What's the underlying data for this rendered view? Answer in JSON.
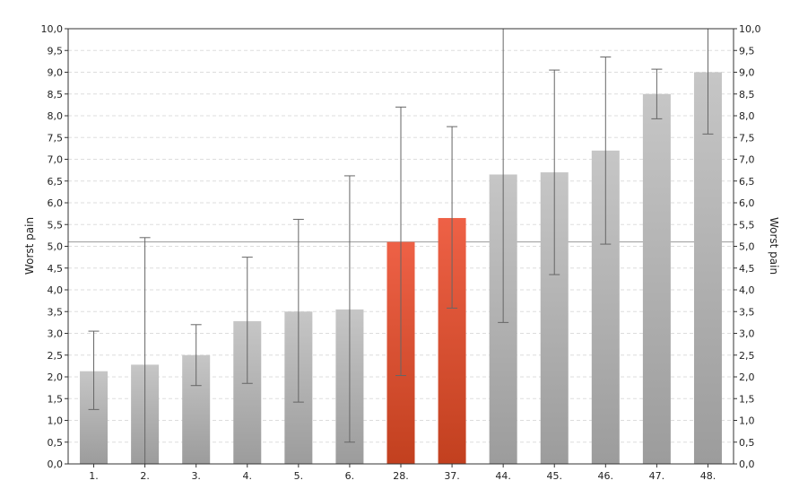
{
  "chart_data": {
    "type": "bar",
    "ylabel_left": "Worst pain",
    "ylabel_right": "Worst pain",
    "ylim": [
      0,
      10
    ],
    "ytick_step": 0.5,
    "ytick_labels": [
      "0,0",
      "0,5",
      "1,0",
      "1,5",
      "2,0",
      "2,5",
      "3,0",
      "3,5",
      "4,0",
      "4,5",
      "5,0",
      "5,5",
      "6,0",
      "6,5",
      "7,0",
      "7,5",
      "8,0",
      "8,5",
      "9,0",
      "9,5",
      "10,0"
    ],
    "grid": "horizontal-dashed",
    "reference_line": 5.1,
    "colors": {
      "default": "#b4b4b4",
      "highlight": "#dd5536",
      "whisker": "#666666",
      "axis": "#333333",
      "grid": "#dddddd"
    },
    "categories": [
      "1.",
      "2.",
      "3.",
      "4.",
      "5.",
      "6.",
      "28.",
      "37.",
      "44.",
      "45.",
      "46.",
      "47.",
      "48."
    ],
    "values": [
      2.13,
      2.28,
      2.5,
      3.28,
      3.5,
      3.55,
      5.1,
      5.65,
      6.65,
      6.7,
      7.2,
      8.5,
      9.0
    ],
    "error_low": [
      1.25,
      0.0,
      1.8,
      1.85,
      1.42,
      0.5,
      2.03,
      3.58,
      3.25,
      4.35,
      5.05,
      7.93,
      7.58
    ],
    "error_high": [
      3.05,
      5.2,
      3.2,
      4.75,
      5.62,
      6.62,
      8.2,
      7.75,
      10.0,
      9.05,
      9.35,
      9.07,
      10.0
    ],
    "highlight": [
      false,
      false,
      false,
      false,
      false,
      false,
      true,
      true,
      false,
      false,
      false,
      false,
      false
    ]
  }
}
